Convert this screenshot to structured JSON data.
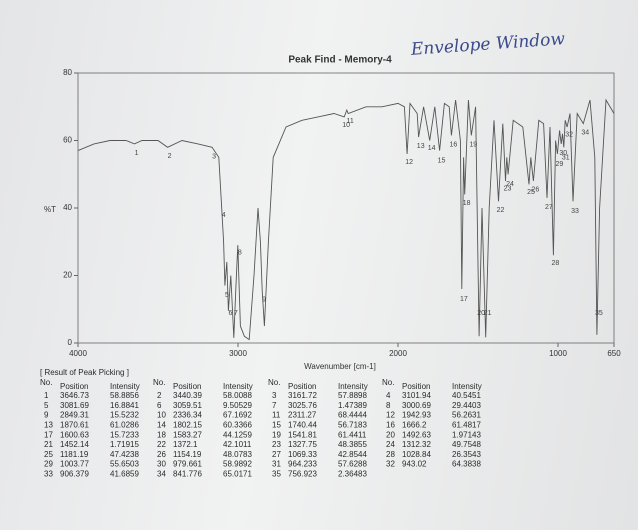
{
  "note_handwritten": "Envelope Window",
  "chart_data": {
    "type": "line",
    "title": "Peak Find - Memory-4",
    "ylabel": "%T",
    "xlabel": "Wavenumber [cm-1]",
    "color": "#555555",
    "xlim": [
      4000,
      650
    ],
    "ylim": [
      0,
      80
    ],
    "xticks": [
      4000,
      3000,
      2000,
      1000,
      650
    ],
    "yticks": [
      0,
      20,
      40,
      60,
      80
    ],
    "x": [
      4000,
      3900,
      3800,
      3700,
      3647,
      3600,
      3500,
      3440,
      3350,
      3250,
      3162,
      3120,
      3102,
      3090,
      3082,
      3070,
      3060,
      3045,
      3026,
      3012,
      3001,
      2985,
      2960,
      2930,
      2900,
      2875,
      2860,
      2849,
      2835,
      2810,
      2780,
      2700,
      2600,
      2500,
      2400,
      2336,
      2320,
      2311,
      2200,
      2100,
      2000,
      1960,
      1943,
      1925,
      1880,
      1871,
      1840,
      1802,
      1770,
      1740,
      1710,
      1680,
      1666,
      1640,
      1610,
      1601,
      1590,
      1583,
      1560,
      1542,
      1515,
      1493,
      1475,
      1452,
      1430,
      1400,
      1372,
      1345,
      1328,
      1320,
      1312,
      1280,
      1220,
      1181,
      1170,
      1154,
      1120,
      1090,
      1069,
      1050,
      1029,
      1015,
      1004,
      990,
      980,
      972,
      964,
      955,
      943,
      925,
      906,
      880,
      842,
      800,
      770,
      757,
      740,
      700,
      650
    ],
    "values": [
      57,
      59,
      60,
      60,
      59,
      60,
      60,
      58,
      60,
      59,
      58,
      55,
      40,
      30,
      17,
      24,
      9.5,
      20,
      1.5,
      18,
      29,
      5,
      2,
      1,
      20,
      40,
      30,
      15.5,
      5,
      30,
      55,
      64,
      66,
      67,
      68,
      67,
      69,
      68,
      70,
      70,
      71,
      70,
      56,
      71,
      68,
      61,
      70,
      60,
      70,
      57,
      71,
      70,
      61.5,
      72,
      60,
      16,
      55,
      44,
      72,
      61.5,
      70,
      2,
      40,
      1.7,
      40,
      66,
      42,
      65,
      48,
      55,
      50,
      66,
      64,
      47,
      55,
      48,
      66,
      65,
      43,
      64,
      26,
      60,
      56,
      63,
      59,
      62,
      58,
      66,
      64,
      68,
      42,
      68,
      65,
      72,
      55,
      2.4,
      40,
      72,
      68
    ]
  },
  "table": {
    "title": "[ Result of Peak Picking ]",
    "columns": [
      "No.",
      "Position",
      "Intensity"
    ],
    "peaks": [
      [
        1,
        3646.73,
        58.8856
      ],
      [
        2,
        3440.39,
        58.0088
      ],
      [
        3,
        3161.72,
        57.8898
      ],
      [
        4,
        3101.94,
        40.5451
      ],
      [
        5,
        3081.69,
        16.8841
      ],
      [
        6,
        3059.51,
        9.50529
      ],
      [
        7,
        3025.76,
        1.47389
      ],
      [
        8,
        3000.69,
        29.4403
      ],
      [
        9,
        2849.31,
        15.5232
      ],
      [
        10,
        2336.34,
        67.1692
      ],
      [
        11,
        2311.27,
        68.4444
      ],
      [
        12,
        1942.93,
        56.2631
      ],
      [
        13,
        1870.61,
        61.0286
      ],
      [
        14,
        1802.15,
        60.3366
      ],
      [
        15,
        1740.44,
        56.7183
      ],
      [
        16,
        1666.2,
        61.4817
      ],
      [
        17,
        1600.63,
        15.7233
      ],
      [
        18,
        1583.27,
        44.1259
      ],
      [
        19,
        1541.81,
        61.4411
      ],
      [
        20,
        1492.63,
        1.97143
      ],
      [
        21,
        1452.14,
        1.71915
      ],
      [
        22,
        1372.1,
        42.1011
      ],
      [
        23,
        1327.75,
        48.3855
      ],
      [
        24,
        1312.32,
        49.7548
      ],
      [
        25,
        1181.19,
        47.4238
      ],
      [
        26,
        1154.19,
        48.0783
      ],
      [
        27,
        1069.33,
        42.8544
      ],
      [
        28,
        1028.84,
        26.3543
      ],
      [
        29,
        1003.77,
        55.6503
      ],
      [
        30,
        979.661,
        58.9892
      ],
      [
        31,
        964.233,
        57.6288
      ],
      [
        32,
        943.02,
        64.3838
      ],
      [
        33,
        906.379,
        41.6859
      ],
      [
        34,
        841.776,
        65.0171
      ],
      [
        35,
        756.923,
        2.36483
      ]
    ]
  }
}
